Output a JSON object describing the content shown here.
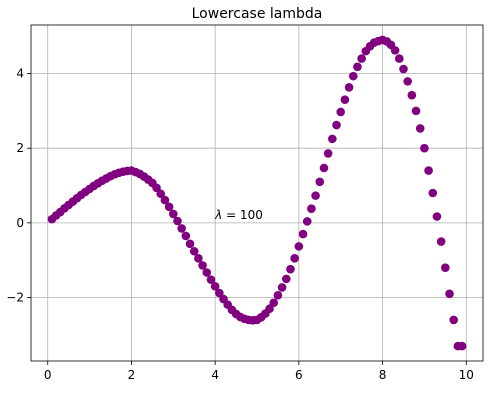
{
  "chart_data": {
    "type": "scatter",
    "title": "Lowercase lambda",
    "xlabel": "",
    "ylabel": "",
    "xlim": [
      -0.4,
      10.4
    ],
    "ylim": [
      -3.7,
      5.3
    ],
    "grid": true,
    "marker_color": "#800080",
    "x_ticks": [
      0,
      2,
      4,
      6,
      8,
      10
    ],
    "y_ticks": [
      -2,
      0,
      2,
      4
    ],
    "x_tick_labels": [
      "0",
      "2",
      "4",
      "6",
      "8",
      "10"
    ],
    "y_tick_labels": [
      "−2",
      "0",
      "2",
      "4"
    ],
    "annotation": {
      "symbol": "λ",
      "rest": " = 100",
      "x": 4.0,
      "y": 0.1
    },
    "series": [
      {
        "x": [
          0.1,
          0.2,
          0.3,
          0.4,
          0.5,
          0.6,
          0.7,
          0.8,
          0.9,
          1.0,
          1.1,
          1.2,
          1.3,
          1.4,
          1.5,
          1.6,
          1.7,
          1.8,
          1.9,
          2.0,
          2.1,
          2.2,
          2.3,
          2.4,
          2.5,
          2.6,
          2.7,
          2.8,
          2.9,
          3.0,
          3.1,
          3.2,
          3.3,
          3.4,
          3.5,
          3.6,
          3.7,
          3.8,
          3.9,
          4.0,
          4.1,
          4.2,
          4.3,
          4.4,
          4.5,
          4.6,
          4.7,
          4.8,
          4.9,
          5.0,
          5.1,
          5.2,
          5.3,
          5.4,
          5.5,
          5.6,
          5.7,
          5.8,
          5.9,
          6.0,
          6.1,
          6.2,
          6.3,
          6.4,
          6.5,
          6.6,
          6.7,
          6.8,
          6.9,
          7.0,
          7.1,
          7.2,
          7.3,
          7.4,
          7.5,
          7.6,
          7.7,
          7.8,
          7.9,
          8.0,
          8.1,
          8.2,
          8.3,
          8.4,
          8.5,
          8.6,
          8.7,
          8.8,
          8.9,
          9.0,
          9.1,
          9.2,
          9.3,
          9.4,
          9.5,
          9.6,
          9.7,
          9.8,
          9.9
        ],
        "y": [
          0.1,
          0.2,
          0.29,
          0.39,
          0.48,
          0.57,
          0.66,
          0.75,
          0.83,
          0.91,
          0.99,
          1.06,
          1.13,
          1.19,
          1.25,
          1.3,
          1.34,
          1.37,
          1.39,
          1.4,
          1.36,
          1.31,
          1.24,
          1.16,
          1.07,
          0.94,
          0.78,
          0.61,
          0.43,
          0.24,
          0.05,
          -0.15,
          -0.35,
          -0.56,
          -0.76,
          -0.95,
          -1.14,
          -1.33,
          -1.52,
          -1.7,
          -1.88,
          -2.04,
          -2.19,
          -2.33,
          -2.44,
          -2.52,
          -2.57,
          -2.6,
          -2.61,
          -2.6,
          -2.53,
          -2.43,
          -2.3,
          -2.14,
          -1.94,
          -1.73,
          -1.5,
          -1.24,
          -0.95,
          -0.63,
          -0.3,
          0.04,
          0.38,
          0.73,
          1.1,
          1.47,
          1.86,
          2.25,
          2.62,
          2.97,
          3.3,
          3.63,
          3.93,
          4.18,
          4.4,
          4.6,
          4.73,
          4.83,
          4.87,
          4.9,
          4.86,
          4.77,
          4.62,
          4.4,
          4.12,
          3.79,
          3.42,
          3.0,
          2.53,
          2.0,
          1.4,
          0.8,
          0.17,
          -0.5,
          -1.2,
          -1.9,
          -2.6,
          -3.3,
          -3.3
        ]
      }
    ]
  }
}
